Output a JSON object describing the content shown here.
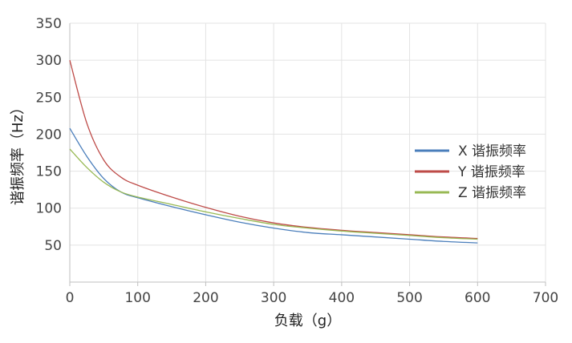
{
  "chart_data": {
    "type": "line",
    "title": "",
    "xlabel": "负载（g）",
    "ylabel": "谐振频率（Hz）",
    "xlim": [
      0,
      700
    ],
    "ylim": [
      0,
      350
    ],
    "x_ticks": [
      0,
      100,
      200,
      300,
      400,
      500,
      600,
      700
    ],
    "y_ticks": [
      50,
      100,
      150,
      200,
      250,
      300,
      350
    ],
    "grid": true,
    "legend_position": "right",
    "series": [
      {
        "name": "X 谐振频率",
        "color": "#4a7ebb",
        "x": [
          0,
          25,
          50,
          75,
          100,
          150,
          200,
          250,
          300,
          350,
          400,
          450,
          500,
          550,
          600
        ],
        "y": [
          208,
          170,
          140,
          122,
          114,
          102,
          91,
          81,
          73,
          67,
          64,
          61,
          58,
          55,
          53
        ]
      },
      {
        "name": "Y 谐振频率",
        "color": "#be4b48",
        "x": [
          0,
          25,
          50,
          75,
          100,
          150,
          200,
          250,
          300,
          350,
          400,
          450,
          500,
          550,
          600
        ],
        "y": [
          300,
          215,
          165,
          142,
          131,
          115,
          101,
          89,
          80,
          74,
          70,
          67,
          64,
          61,
          59
        ]
      },
      {
        "name": "Z 谐振频率",
        "color": "#98b954",
        "x": [
          0,
          25,
          50,
          75,
          100,
          150,
          200,
          250,
          300,
          350,
          400,
          450,
          500,
          550,
          600
        ],
        "y": [
          180,
          155,
          135,
          122,
          115,
          105,
          95,
          86,
          78,
          73,
          69,
          66,
          63,
          60,
          58
        ]
      }
    ]
  }
}
